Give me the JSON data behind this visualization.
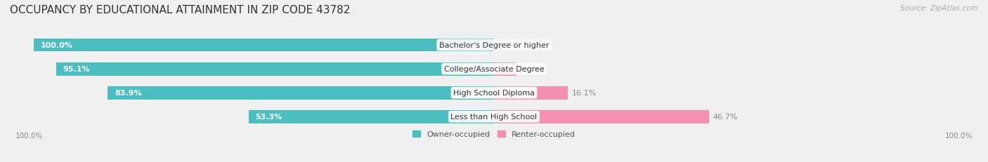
{
  "title": "OCCUPANCY BY EDUCATIONAL ATTAINMENT IN ZIP CODE 43782",
  "source": "Source: ZipAtlas.com",
  "categories": [
    "Less than High School",
    "High School Diploma",
    "College/Associate Degree",
    "Bachelor's Degree or higher"
  ],
  "owner_values": [
    53.3,
    83.9,
    95.1,
    100.0
  ],
  "renter_values": [
    46.7,
    16.1,
    4.9,
    0.0
  ],
  "owner_color": "#4bbfbf",
  "renter_color": "#f48fb1",
  "bg_color": "#f0f0f0",
  "bar_bg_color": "#e8e8e8",
  "title_fontsize": 11,
  "label_fontsize": 8,
  "tick_fontsize": 7.5,
  "source_fontsize": 7.5,
  "legend_fontsize": 8,
  "bar_height": 0.55,
  "xlim": [
    -100,
    100
  ],
  "x_axis_labels": [
    "100.0%",
    "100.0%"
  ]
}
